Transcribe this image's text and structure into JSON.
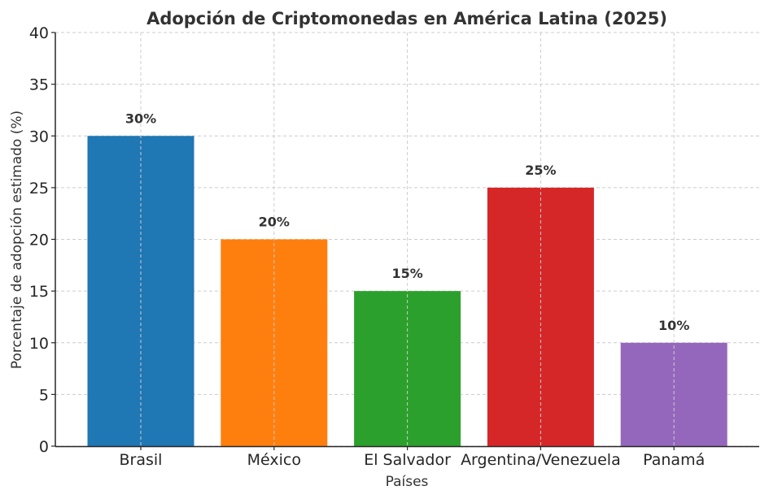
{
  "chart_data": {
    "type": "bar",
    "title": "Adopción de Criptomonedas en América Latina (2025)",
    "xlabel": "Países",
    "ylabel": "Porcentaje de adopción estimado (%)",
    "categories": [
      "Brasil",
      "México",
      "El Salvador",
      "Argentina/Venezuela",
      "Panamá"
    ],
    "values": [
      30,
      20,
      15,
      25,
      10
    ],
    "data_labels": [
      "30%",
      "20%",
      "15%",
      "25%",
      "10%"
    ],
    "colors": [
      "#1f77b4",
      "#ff7f0e",
      "#2ca02c",
      "#d62728",
      "#9467bd"
    ],
    "ylim": [
      0,
      40
    ],
    "yticks": [
      "0",
      "5",
      "10",
      "15",
      "20",
      "25",
      "30",
      "35",
      "40"
    ],
    "grid": true
  }
}
